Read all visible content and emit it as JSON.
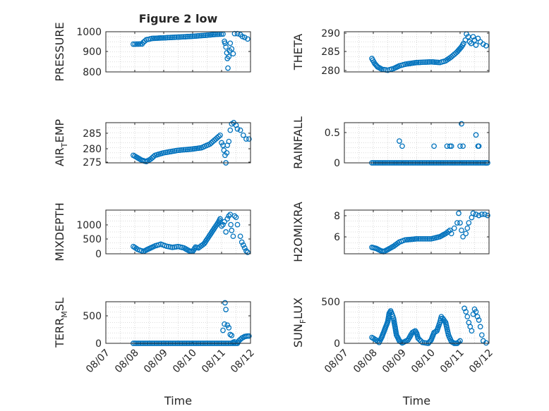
{
  "chart_data": [
    {
      "type": "scatter",
      "title": "Figure 2 low",
      "ylabel": "PRESSURE",
      "xlabel": "",
      "x_ticks": [
        "08/07",
        "08/08",
        "08/09",
        "08/10",
        "08/11",
        "08/12"
      ],
      "y_ticks": [
        "800",
        "900",
        "1000"
      ],
      "ylim": [
        800,
        1010
      ],
      "grid": true,
      "series": [
        {
          "segments": [
            [
              0.95,
              945
            ],
            [
              1.25,
              946
            ],
            [
              1.3,
              955
            ],
            [
              1.4,
              968
            ],
            [
              1.6,
              975
            ],
            [
              2.0,
              978
            ],
            [
              2.5,
              982
            ],
            [
              3.0,
              986
            ],
            [
              3.5,
              992
            ],
            [
              3.8,
              996
            ],
            [
              4.05,
              998
            ]
          ],
          "points": [
            [
              4.1,
              960
            ],
            [
              4.12,
              950
            ],
            [
              4.15,
              930
            ],
            [
              4.18,
              900
            ],
            [
              4.2,
              870
            ],
            [
              4.22,
              820
            ],
            [
              4.25,
              880
            ],
            [
              4.28,
              910
            ],
            [
              4.3,
              950
            ],
            [
              4.35,
              920
            ],
            [
              4.4,
              895
            ],
            [
              4.45,
              1000
            ],
            [
              4.55,
              1000
            ],
            [
              4.65,
              995
            ],
            [
              4.72,
              985
            ],
            [
              4.8,
              980
            ],
            [
              4.9,
              972
            ]
          ]
        }
      ]
    },
    {
      "type": "scatter",
      "title": "",
      "ylabel": "THETA",
      "xlabel": "",
      "x_ticks": [
        "08/07",
        "08/08",
        "08/09",
        "08/10",
        "08/11",
        "08/12"
      ],
      "y_ticks": [
        "280",
        "285",
        "290"
      ],
      "ylim": [
        279,
        291
      ],
      "grid": true,
      "series": [
        {
          "segments": [
            [
              0.95,
              283
            ],
            [
              1.05,
              281.5
            ],
            [
              1.15,
              280.5
            ],
            [
              1.3,
              279.8
            ],
            [
              1.5,
              279.5
            ],
            [
              1.7,
              280
            ],
            [
              1.9,
              280.8
            ],
            [
              2.1,
              281.3
            ],
            [
              2.5,
              281.8
            ],
            [
              3.0,
              282
            ],
            [
              3.3,
              281.8
            ],
            [
              3.5,
              282.3
            ],
            [
              3.7,
              283.5
            ],
            [
              3.9,
              285
            ],
            [
              4.05,
              286.5
            ],
            [
              4.12,
              287.5
            ]
          ],
          "points": [
            [
              4.18,
              288.5
            ],
            [
              4.22,
              290.3
            ],
            [
              4.28,
              289.5
            ],
            [
              4.33,
              288
            ],
            [
              4.38,
              287.5
            ],
            [
              4.45,
              289.5
            ],
            [
              4.5,
              288.5
            ],
            [
              4.55,
              287
            ],
            [
              4.62,
              289
            ],
            [
              4.7,
              288
            ],
            [
              4.8,
              287.3
            ],
            [
              4.9,
              286.8
            ]
          ]
        }
      ]
    },
    {
      "type": "scatter",
      "title": "",
      "ylabel": "AIR_TEMP",
      "xlabel": "",
      "x_ticks": [
        "08/07",
        "08/08",
        "08/09",
        "08/10",
        "08/11",
        "08/12"
      ],
      "y_ticks": [
        "275",
        "280",
        "285"
      ],
      "ylim": [
        275,
        291
      ],
      "grid": true,
      "series": [
        {
          "segments": [
            [
              0.95,
              278
            ],
            [
              1.1,
              277
            ],
            [
              1.25,
              276
            ],
            [
              1.4,
              275.5
            ],
            [
              1.55,
              276.5
            ],
            [
              1.7,
              278
            ],
            [
              2.0,
              279
            ],
            [
              2.5,
              280
            ],
            [
              3.0,
              280.5
            ],
            [
              3.3,
              281
            ],
            [
              3.6,
              282.5
            ],
            [
              3.8,
              284.5
            ],
            [
              3.95,
              286
            ]
          ],
          "points": [
            [
              4.0,
              283
            ],
            [
              4.05,
              282
            ],
            [
              4.08,
              280
            ],
            [
              4.12,
              278
            ],
            [
              4.15,
              275
            ],
            [
              4.18,
              279
            ],
            [
              4.2,
              282
            ],
            [
              4.25,
              283.5
            ],
            [
              4.3,
              288
            ],
            [
              4.35,
              290.5
            ],
            [
              4.42,
              291
            ],
            [
              4.5,
              290
            ],
            [
              4.55,
              288.5
            ],
            [
              4.65,
              288
            ],
            [
              4.75,
              286
            ],
            [
              4.85,
              284.5
            ],
            [
              4.95,
              284.5
            ]
          ]
        }
      ]
    },
    {
      "type": "scatter",
      "title": "",
      "ylabel": "RAINFALL",
      "xlabel": "",
      "x_ticks": [
        "08/07",
        "08/08",
        "08/09",
        "08/10",
        "08/11",
        "08/12"
      ],
      "y_ticks": [
        "0",
        "0.5"
      ],
      "ylim": [
        0,
        0.72
      ],
      "grid": true,
      "series": [
        {
          "segments": [
            [
              0.95,
              0
            ],
            [
              4.95,
              0
            ]
          ],
          "points": [
            [
              1.9,
              0.39
            ],
            [
              2.0,
              0.3
            ],
            [
              3.1,
              0.3
            ],
            [
              3.55,
              0.3
            ],
            [
              3.65,
              0.3
            ],
            [
              3.7,
              0.3
            ],
            [
              4.0,
              0.3
            ],
            [
              4.05,
              0.7
            ],
            [
              4.1,
              0.3
            ],
            [
              4.55,
              0.5
            ],
            [
              4.62,
              0.3
            ],
            [
              4.65,
              0.3
            ],
            [
              4.9,
              0
            ]
          ]
        }
      ]
    },
    {
      "type": "scatter",
      "title": "",
      "ylabel": "MIXDEPTH",
      "xlabel": "",
      "x_ticks": [
        "08/07",
        "08/08",
        "08/09",
        "08/10",
        "08/11",
        "08/12"
      ],
      "y_ticks": [
        "0",
        "500",
        "1000"
      ],
      "ylim": [
        0,
        1500
      ],
      "grid": true,
      "series": [
        {
          "segments": [
            [
              0.95,
              250
            ],
            [
              1.1,
              150
            ],
            [
              1.3,
              80
            ],
            [
              1.5,
              180
            ],
            [
              1.7,
              270
            ],
            [
              1.9,
              330
            ],
            [
              2.1,
              260
            ],
            [
              2.3,
              220
            ],
            [
              2.5,
              250
            ],
            [
              2.7,
              200
            ],
            [
              2.9,
              90
            ],
            [
              3.0,
              80
            ],
            [
              3.1,
              230
            ],
            [
              3.2,
              200
            ],
            [
              3.4,
              350
            ],
            [
              3.6,
              650
            ],
            [
              3.8,
              950
            ],
            [
              3.9,
              1100
            ],
            [
              3.95,
              1200
            ]
          ],
          "points": [
            [
              4.0,
              950
            ],
            [
              4.05,
              1000
            ],
            [
              4.1,
              1100
            ],
            [
              4.15,
              750
            ],
            [
              4.2,
              1200
            ],
            [
              4.25,
              1300
            ],
            [
              4.3,
              1350
            ],
            [
              4.32,
              1000
            ],
            [
              4.35,
              800
            ],
            [
              4.4,
              600
            ],
            [
              4.45,
              1300
            ],
            [
              4.5,
              1250
            ],
            [
              4.55,
              1000
            ],
            [
              4.65,
              600
            ],
            [
              4.7,
              400
            ],
            [
              4.75,
              300
            ],
            [
              4.8,
              200
            ],
            [
              4.85,
              100
            ],
            [
              4.9,
              50
            ]
          ]
        }
      ]
    },
    {
      "type": "scatter",
      "title": "",
      "ylabel": "H2OMIXRA",
      "xlabel": "",
      "x_ticks": [
        "08/07",
        "08/08",
        "08/09",
        "08/10",
        "08/11",
        "08/12"
      ],
      "y_ticks": [
        "6",
        "8"
      ],
      "ylim": [
        4.6,
        8.7
      ],
      "grid": true,
      "series": [
        {
          "segments": [
            [
              0.95,
              5.2
            ],
            [
              1.1,
              5.1
            ],
            [
              1.25,
              4.9
            ],
            [
              1.35,
              4.8
            ],
            [
              1.5,
              5.0
            ],
            [
              1.7,
              5.3
            ],
            [
              1.9,
              5.7
            ],
            [
              2.1,
              5.9
            ],
            [
              2.5,
              6.0
            ],
            [
              3.0,
              6.0
            ],
            [
              3.3,
              6.2
            ],
            [
              3.5,
              6.5
            ],
            [
              3.65,
              6.8
            ]
          ],
          "points": [
            [
              3.7,
              6.5
            ],
            [
              3.8,
              7.0
            ],
            [
              3.9,
              7.5
            ],
            [
              3.95,
              8.4
            ],
            [
              4.0,
              7.5
            ],
            [
              4.05,
              6.8
            ],
            [
              4.1,
              6.2
            ],
            [
              4.2,
              6.5
            ],
            [
              4.25,
              7.0
            ],
            [
              4.3,
              7.5
            ],
            [
              4.4,
              8.0
            ],
            [
              4.45,
              8.4
            ],
            [
              4.55,
              8.3
            ],
            [
              4.65,
              8.2
            ],
            [
              4.75,
              8.3
            ],
            [
              4.85,
              8.3
            ],
            [
              4.95,
              8.2
            ]
          ]
        }
      ]
    },
    {
      "type": "scatter",
      "title": "",
      "ylabel": "TERR_MSL",
      "xlabel": "Time",
      "x_ticks": [
        "08/07",
        "08/08",
        "08/09",
        "08/10",
        "08/11",
        "08/12"
      ],
      "y_ticks": [
        "0",
        "500"
      ],
      "ylim": [
        0,
        800
      ],
      "grid": true,
      "series": [
        {
          "segments": [
            [
              0.95,
              0
            ],
            [
              4.0,
              0
            ],
            [
              4.55,
              0
            ],
            [
              4.6,
              50
            ],
            [
              4.7,
              100
            ],
            [
              4.8,
              130
            ],
            [
              4.9,
              140
            ],
            [
              4.95,
              140
            ]
          ],
          "points": [
            [
              4.05,
              250
            ],
            [
              4.1,
              370
            ],
            [
              4.12,
              780
            ],
            [
              4.15,
              650
            ],
            [
              4.2,
              350
            ],
            [
              4.25,
              300
            ],
            [
              4.3,
              170
            ],
            [
              4.35,
              150
            ],
            [
              4.4,
              20
            ],
            [
              4.45,
              30
            ]
          ]
        }
      ]
    },
    {
      "type": "scatter",
      "title": "",
      "ylabel": "SUN_FLUX",
      "xlabel": "Time",
      "x_ticks": [
        "08/07",
        "08/08",
        "08/09",
        "08/10",
        "08/11",
        "08/12"
      ],
      "y_ticks": [
        "0",
        "500"
      ],
      "ylim": [
        0,
        500
      ],
      "grid": true,
      "series": [
        {
          "segments": [
            [
              0.95,
              70
            ],
            [
              1.1,
              40
            ],
            [
              1.2,
              10
            ],
            [
              1.3,
              80
            ],
            [
              1.4,
              170
            ],
            [
              1.5,
              260
            ],
            [
              1.55,
              360
            ],
            [
              1.6,
              390
            ],
            [
              1.65,
              350
            ],
            [
              1.7,
              300
            ],
            [
              1.75,
              200
            ],
            [
              1.8,
              100
            ],
            [
              1.9,
              30
            ],
            [
              2.0,
              5
            ],
            [
              2.2,
              40
            ],
            [
              2.35,
              130
            ],
            [
              2.45,
              150
            ],
            [
              2.5,
              120
            ],
            [
              2.55,
              60
            ],
            [
              2.7,
              10
            ],
            [
              2.9,
              0
            ],
            [
              3.0,
              40
            ],
            [
              3.1,
              130
            ],
            [
              3.2,
              150
            ],
            [
              3.3,
              250
            ],
            [
              3.35,
              320
            ],
            [
              3.4,
              300
            ],
            [
              3.5,
              250
            ],
            [
              3.6,
              100
            ],
            [
              3.7,
              20
            ],
            [
              3.8,
              0
            ],
            [
              3.9,
              0
            ],
            [
              4.0,
              30
            ]
          ],
          "points": [
            [
              4.15,
              420
            ],
            [
              4.2,
              380
            ],
            [
              4.25,
              320
            ],
            [
              4.3,
              250
            ],
            [
              4.35,
              200
            ],
            [
              4.4,
              150
            ],
            [
              4.45,
              350
            ],
            [
              4.5,
              410
            ],
            [
              4.55,
              380
            ],
            [
              4.6,
              320
            ],
            [
              4.65,
              280
            ],
            [
              4.7,
              200
            ],
            [
              4.75,
              100
            ],
            [
              4.8,
              30
            ],
            [
              4.9,
              5
            ]
          ]
        }
      ]
    }
  ]
}
